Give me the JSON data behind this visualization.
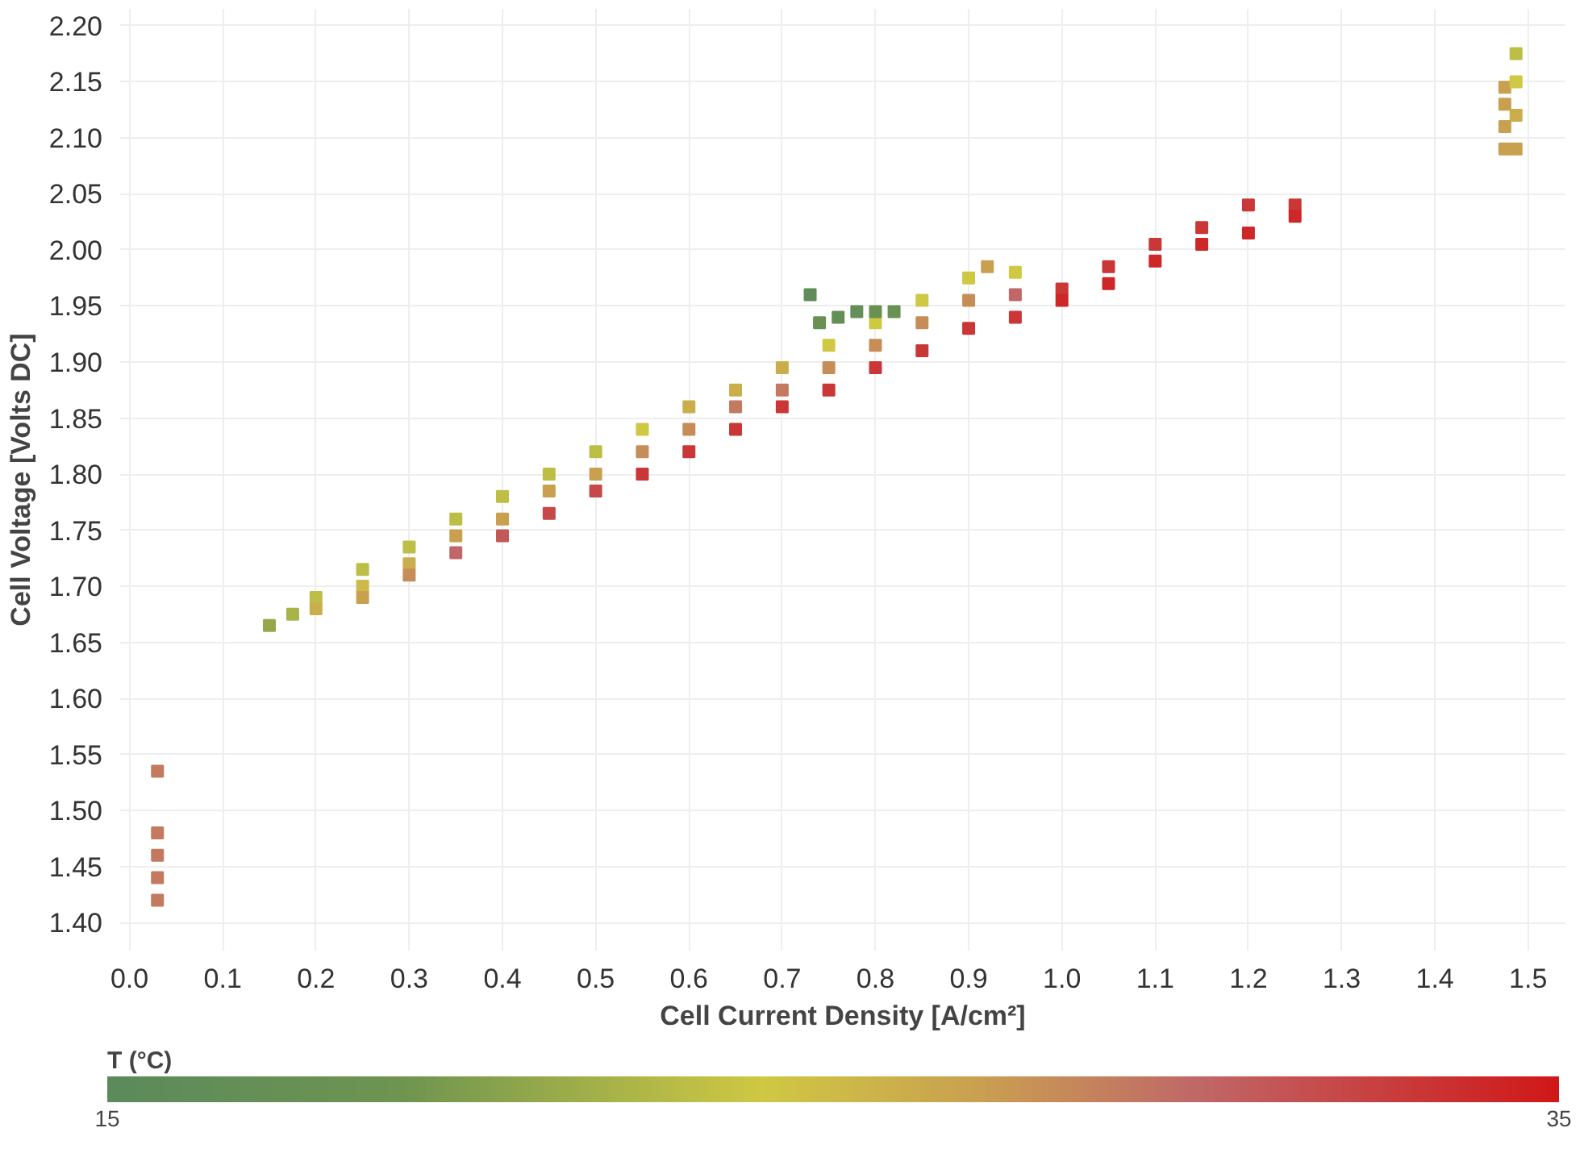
{
  "chart_data": {
    "type": "scatter",
    "xlabel": "Cell Current Density [A/cm²]",
    "ylabel": "Cell Voltage [Volts DC]",
    "clabel": "T (°C)",
    "marker": "square",
    "grid": true,
    "xlim": [
      -0.01,
      1.54
    ],
    "ylim": [
      1.375,
      2.215
    ],
    "xticks": [
      {
        "value": 0,
        "label": "0.0"
      },
      {
        "value": 0.1,
        "label": "0.1"
      },
      {
        "value": 0.2,
        "label": "0.2"
      },
      {
        "value": 0.3,
        "label": "0.3"
      },
      {
        "value": 0.4,
        "label": "0.4"
      },
      {
        "value": 0.5,
        "label": "0.5"
      },
      {
        "value": 0.6,
        "label": "0.6"
      },
      {
        "value": 0.7,
        "label": "0.7"
      },
      {
        "value": 0.8,
        "label": "0.8"
      },
      {
        "value": 0.9,
        "label": "0.9"
      },
      {
        "value": 1,
        "label": "1.0"
      },
      {
        "value": 1.1,
        "label": "1.1"
      },
      {
        "value": 1.2,
        "label": "1.2"
      },
      {
        "value": 1.3,
        "label": "1.3"
      },
      {
        "value": 1.4,
        "label": "1.4"
      },
      {
        "value": 1.5,
        "label": "1.5"
      }
    ],
    "yticks": [
      {
        "value": 1.4,
        "label": "1.40"
      },
      1.45,
      {
        "value": 1.5,
        "label": "1.50"
      },
      1.55,
      {
        "value": 1.6,
        "label": "1.60"
      },
      1.65,
      {
        "value": 1.7,
        "label": "1.70"
      },
      1.75,
      {
        "value": 1.8,
        "label": "1.80"
      },
      1.85,
      {
        "value": 1.9,
        "label": "1.90"
      },
      1.95,
      {
        "value": 2.0,
        "label": "2.00"
      },
      2.05,
      {
        "value": 2.1,
        "label": "2.10"
      },
      2.15,
      {
        "value": 2.2,
        "label": "2.20"
      }
    ],
    "clim": [
      15,
      35
    ],
    "cticks": [
      15,
      35
    ],
    "x": [
      0.03,
      0.03,
      0.03,
      0.03,
      0.03,
      0.15,
      0.175,
      0.2,
      0.2,
      0.25,
      0.25,
      0.25,
      0.3,
      0.3,
      0.3,
      0.35,
      0.35,
      0.35,
      0.4,
      0.4,
      0.4,
      0.45,
      0.45,
      0.45,
      0.5,
      0.5,
      0.5,
      0.55,
      0.55,
      0.55,
      0.6,
      0.6,
      0.6,
      0.65,
      0.65,
      0.65,
      0.7,
      0.7,
      0.7,
      0.75,
      0.75,
      0.75,
      0.8,
      0.8,
      0.8,
      0.85,
      0.85,
      0.85,
      0.9,
      0.9,
      0.9,
      0.95,
      0.95,
      0.95,
      1.0,
      1.0,
      1.05,
      1.05,
      1.1,
      1.1,
      1.15,
      1.15,
      1.2,
      1.2,
      1.25,
      1.25,
      0.73,
      0.74,
      0.76,
      0.78,
      0.8,
      0.82,
      0.92,
      1.475,
      1.475,
      1.475,
      1.475,
      1.487,
      1.487,
      1.487,
      1.487
    ],
    "values": [
      1.42,
      1.44,
      1.46,
      1.48,
      1.535,
      1.665,
      1.675,
      1.69,
      1.68,
      1.715,
      1.7,
      1.69,
      1.735,
      1.72,
      1.71,
      1.76,
      1.745,
      1.73,
      1.78,
      1.76,
      1.745,
      1.8,
      1.785,
      1.765,
      1.82,
      1.8,
      1.785,
      1.84,
      1.82,
      1.8,
      1.86,
      1.84,
      1.82,
      1.875,
      1.86,
      1.84,
      1.895,
      1.875,
      1.86,
      1.915,
      1.895,
      1.875,
      1.935,
      1.915,
      1.895,
      1.955,
      1.935,
      1.91,
      1.975,
      1.955,
      1.93,
      1.98,
      1.96,
      1.94,
      1.965,
      1.955,
      1.985,
      1.97,
      2.005,
      1.99,
      2.02,
      2.005,
      2.04,
      2.015,
      2.04,
      2.03,
      1.96,
      1.935,
      1.94,
      1.945,
      1.945,
      1.945,
      1.985,
      2.09,
      2.11,
      2.13,
      2.145,
      2.09,
      2.12,
      2.15,
      2.175
    ],
    "cvalues": [
      29,
      29,
      29,
      29,
      29,
      21,
      22,
      23,
      26,
      23,
      25,
      27,
      23,
      26,
      28,
      23,
      27,
      30,
      23,
      27,
      31,
      23,
      27,
      32,
      23,
      27,
      32,
      24,
      28,
      33,
      26,
      28,
      33,
      26,
      29,
      33,
      26,
      29,
      33,
      24,
      28,
      33,
      24,
      28,
      33,
      24,
      28,
      33,
      24,
      28,
      33,
      24,
      30,
      33,
      33,
      34,
      33,
      34,
      33,
      34,
      33,
      34,
      33,
      34,
      33,
      34,
      16,
      18,
      17,
      17,
      18,
      18,
      27,
      27,
      27,
      27,
      27,
      27,
      26,
      24,
      23
    ]
  }
}
